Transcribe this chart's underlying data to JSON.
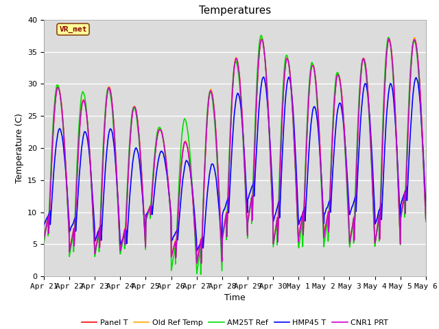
{
  "title": "Temperatures",
  "xlabel": "Time",
  "ylabel": "Temperature (C)",
  "ylim": [
    0,
    40
  ],
  "xlim": [
    0,
    15
  ],
  "bg_color": "#dcdcdc",
  "fig_color": "#ffffff",
  "annotation": "VR_met",
  "xtick_labels": [
    "Apr 21",
    "Apr 22",
    "Apr 23",
    "Apr 24",
    "Apr 25",
    "Apr 26",
    "Apr 27",
    "Apr 28",
    "Apr 29",
    "Apr 30",
    "May 1",
    "May 2",
    "May 3",
    "May 4",
    "May 5",
    "May 6"
  ],
  "series": [
    {
      "label": "Panel T",
      "color": "#ff0000"
    },
    {
      "label": "Old Ref Temp",
      "color": "#ffa500"
    },
    {
      "label": "AM25T Ref",
      "color": "#00dd00"
    },
    {
      "label": "HMP45 T",
      "color": "#0000ff"
    },
    {
      "label": "CNR1 PRT",
      "color": "#cc00cc"
    }
  ],
  "title_fontsize": 11,
  "axis_fontsize": 9,
  "tick_fontsize": 8,
  "linewidth": 1.2,
  "day_peaks": [
    29.5,
    27.5,
    29.5,
    26.5,
    23.0,
    21.0,
    29.0,
    34.0,
    37.0,
    34.0,
    33.0,
    31.5,
    34.0,
    37.0,
    37.0
  ],
  "day_mins": [
    6.0,
    4.0,
    3.5,
    4.0,
    9.0,
    3.0,
    2.0,
    6.0,
    8.5,
    5.0,
    6.0,
    6.5,
    5.0,
    5.0,
    9.0
  ],
  "green_extra_peaks": [
    29.8,
    28.8,
    29.3,
    26.3,
    23.2,
    24.5,
    28.8,
    33.5,
    37.5,
    34.5,
    33.3,
    31.8,
    33.8,
    37.2,
    36.8
  ],
  "green_extra_mins": [
    5.5,
    3.0,
    3.0,
    3.5,
    8.5,
    1.0,
    0.3,
    5.5,
    8.0,
    4.5,
    4.3,
    5.0,
    4.5,
    4.8,
    8.5
  ],
  "blue_peaks": [
    23.0,
    22.5,
    23.0,
    20.0,
    19.5,
    18.0,
    17.5,
    28.5,
    31.0,
    31.0,
    26.5,
    27.0,
    30.0,
    30.0,
    31.0
  ],
  "blue_mins": [
    8.0,
    7.0,
    5.5,
    5.0,
    9.5,
    5.5,
    4.0,
    9.5,
    12.0,
    8.5,
    8.0,
    9.5,
    9.5,
    8.0,
    11.0
  ]
}
